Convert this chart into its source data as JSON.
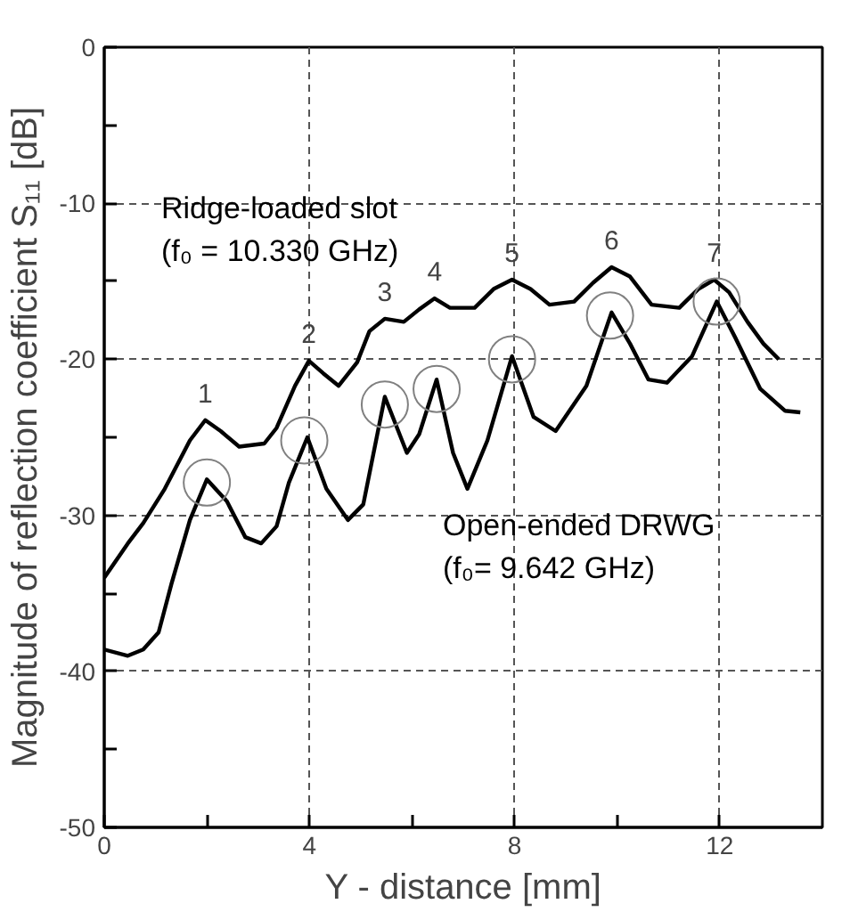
{
  "chart_data": {
    "type": "line",
    "xlabel": "Y - distance [mm]",
    "ylabel": "Magnitude of reflection coefficient S₁₁ [dB]",
    "xlim": [
      0,
      14
    ],
    "ylim": [
      -50,
      0
    ],
    "xticks": [
      0,
      {
        "value": 2,
        "label": null
      },
      4,
      {
        "value": 6,
        "label": null
      },
      8,
      {
        "value": 10,
        "label": null
      },
      12
    ],
    "yticks": [
      -50,
      {
        "value": -45,
        "label": null
      },
      -40,
      {
        "value": -35,
        "label": null
      },
      -30,
      {
        "value": -25,
        "label": null
      },
      -20,
      {
        "value": -15,
        "label": null
      },
      -10,
      {
        "value": -5,
        "label": null
      },
      0
    ],
    "grid": true,
    "line_style": "solid",
    "series": [
      {
        "name": "Ridge-loaded slot\n(f₀ = 10.330 GHz)",
        "color": "#000000",
        "x": [
          0,
          0.46,
          0.76,
          1.18,
          1.67,
          1.97,
          2.27,
          2.63,
          3.12,
          3.36,
          3.72,
          3.99,
          4.27,
          4.57,
          4.93,
          5.17,
          5.47,
          5.84,
          6.14,
          6.44,
          6.74,
          7.22,
          7.59,
          7.95,
          8.31,
          8.68,
          9.16,
          9.53,
          9.89,
          10.25,
          10.67,
          11.21,
          11.58,
          11.89,
          12.18,
          12.54,
          12.85,
          13.15
        ],
        "values": [
          -34.0,
          -31.8,
          -30.5,
          -28.3,
          -25.2,
          -23.9,
          -24.6,
          -25.6,
          -25.4,
          -24.4,
          -21.7,
          -20.1,
          -20.9,
          -21.7,
          -20.2,
          -18.2,
          -17.4,
          -17.6,
          -16.8,
          -16.1,
          -16.7,
          -16.7,
          -15.5,
          -14.9,
          -15.5,
          -16.5,
          -16.3,
          -15.1,
          -14.1,
          -14.7,
          -16.5,
          -16.7,
          -15.5,
          -14.9,
          -15.7,
          -17.6,
          -19.0,
          -20.0
        ]
      },
      {
        "name": "Open-ended DRWG\n(f₀= 9.642 GHz)",
        "color": "#000000",
        "x": [
          0,
          0.46,
          0.76,
          1.06,
          1.31,
          1.67,
          2.0,
          2.39,
          2.75,
          3.06,
          3.36,
          3.6,
          3.96,
          4.33,
          4.75,
          5.05,
          5.47,
          5.9,
          6.14,
          6.48,
          6.8,
          7.08,
          7.47,
          7.95,
          8.37,
          8.8,
          9.4,
          9.89,
          10.25,
          10.61,
          10.97,
          11.46,
          11.94,
          12.3,
          12.79,
          13.27,
          13.57
        ],
        "values": [
          -38.6,
          -39.0,
          -38.6,
          -37.5,
          -34.4,
          -30.3,
          -27.7,
          -29.1,
          -31.4,
          -31.8,
          -30.7,
          -27.9,
          -25.0,
          -28.3,
          -30.3,
          -29.3,
          -22.4,
          -26.0,
          -24.8,
          -21.3,
          -26.0,
          -28.3,
          -25.2,
          -19.8,
          -23.7,
          -24.6,
          -21.7,
          -17.0,
          -19.0,
          -21.3,
          -21.5,
          -19.8,
          -16.3,
          -18.6,
          -21.9,
          -23.3,
          -23.4
        ]
      },
      {
        "type": "scatter",
        "marker": "circle",
        "color": "#808080",
        "x": [
          2.0,
          3.9,
          5.47,
          6.48,
          7.95,
          9.86,
          11.94
        ],
        "values": [
          -27.9,
          -25.2,
          -22.9,
          -21.9,
          -20.0,
          -17.2,
          -16.3
        ]
      }
    ],
    "annotations": [
      {
        "text": "1",
        "x": 1.97,
        "y": -23.9
      },
      {
        "text": "2",
        "x": 3.99,
        "y": -20.1
      },
      {
        "text": "3",
        "x": 5.47,
        "y": -17.4
      },
      {
        "text": "4",
        "x": 6.44,
        "y": -16.1
      },
      {
        "text": "5",
        "x": 7.95,
        "y": -14.9
      },
      {
        "text": "6",
        "x": 9.89,
        "y": -14.1
      },
      {
        "text": "7",
        "x": 11.89,
        "y": -14.9
      }
    ]
  }
}
